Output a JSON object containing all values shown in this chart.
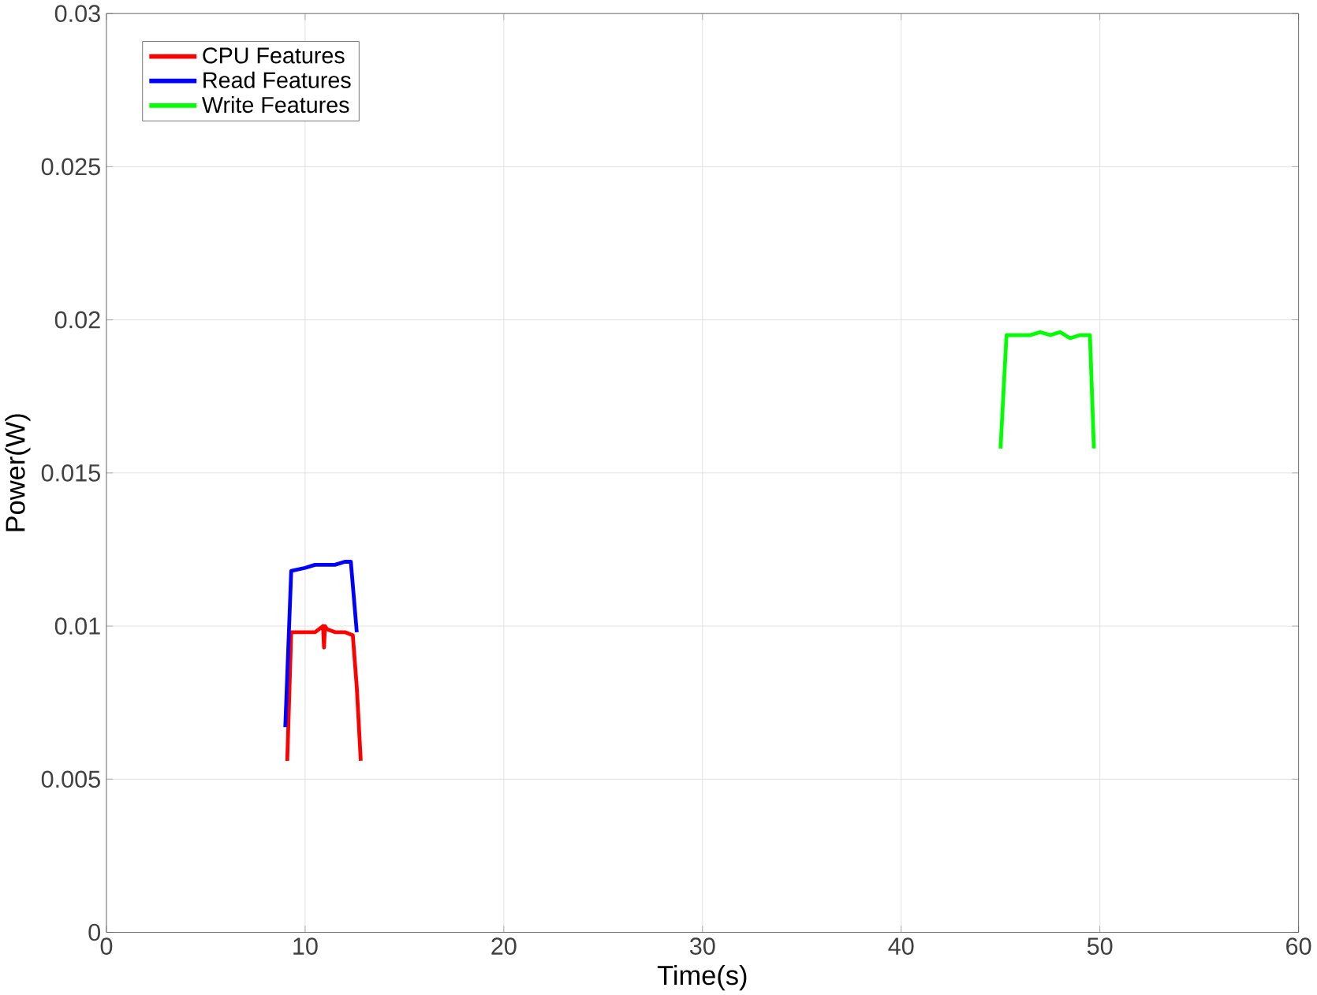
{
  "chart_data": {
    "type": "line",
    "xlabel": "Time(s)",
    "ylabel": "Power(W)",
    "xlim": [
      0,
      60
    ],
    "ylim": [
      0,
      0.03
    ],
    "xticks": [
      0,
      10,
      20,
      30,
      40,
      50,
      60
    ],
    "yticks": [
      0,
      0.005,
      0.01,
      0.015,
      0.02,
      0.025,
      0.03
    ],
    "grid": true,
    "legend": "top left",
    "series": [
      {
        "name": "CPU Features",
        "color": "#ff0000",
        "x": [
          9.1,
          9.3,
          10.0,
          10.5,
          10.9,
          10.95,
          11.0,
          11.1,
          11.5,
          12.0,
          12.4,
          12.6,
          12.8
        ],
        "values": [
          0.0056,
          0.0098,
          0.0098,
          0.0098,
          0.01,
          0.0093,
          0.01,
          0.0099,
          0.0098,
          0.0098,
          0.0097,
          0.008,
          0.0056
        ]
      },
      {
        "name": "Read Features",
        "color": "#0000ff",
        "x": [
          9.0,
          9.3,
          10.0,
          10.5,
          11.0,
          11.5,
          12.0,
          12.3,
          12.6
        ],
        "values": [
          0.0067,
          0.0118,
          0.0119,
          0.012,
          0.012,
          0.012,
          0.0121,
          0.0121,
          0.0098
        ]
      },
      {
        "name": "Write Features",
        "color": "#00ff00",
        "x": [
          45.0,
          45.3,
          46.0,
          46.5,
          47.0,
          47.5,
          48.0,
          48.5,
          49.0,
          49.5,
          49.7
        ],
        "values": [
          0.0158,
          0.0195,
          0.0195,
          0.0195,
          0.0196,
          0.0195,
          0.0196,
          0.0194,
          0.0195,
          0.0195,
          0.0158
        ]
      }
    ]
  }
}
